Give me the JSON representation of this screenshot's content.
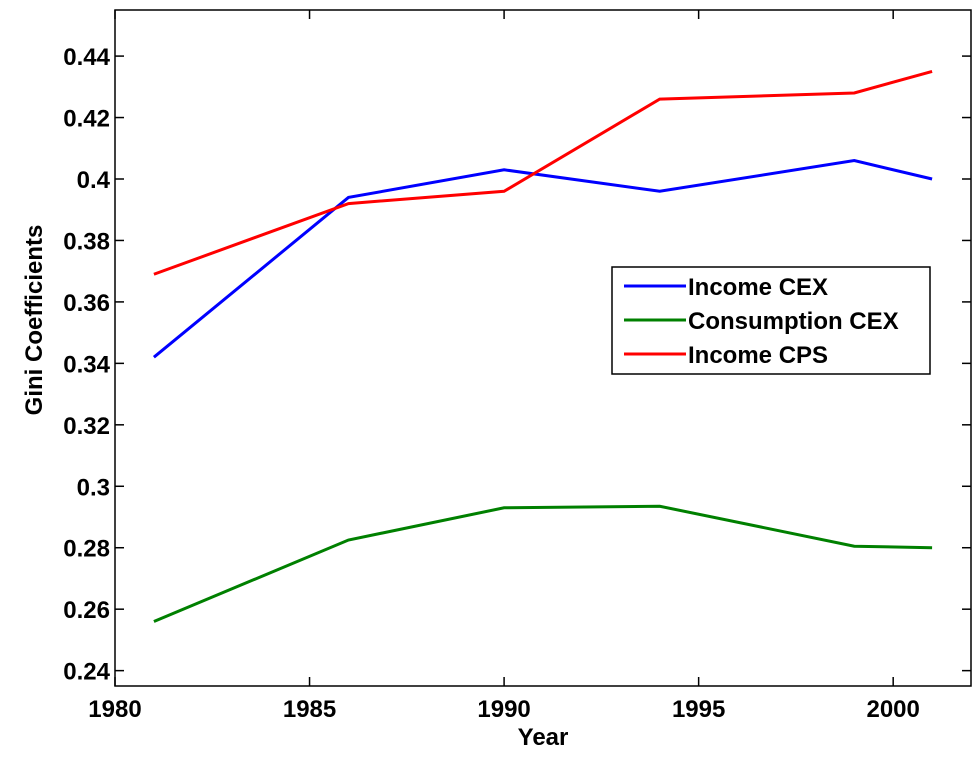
{
  "chart_data": {
    "type": "line",
    "x_label": "Year",
    "y_label": "Gini Coefficients",
    "x": [
      1981,
      1986,
      1990,
      1994,
      1999,
      2001
    ],
    "series": [
      {
        "name": "Income CEX",
        "color": "#0000ff",
        "values": [
          0.342,
          0.394,
          0.403,
          0.396,
          0.406,
          0.4
        ]
      },
      {
        "name": "Consumption CEX",
        "color": "#008000",
        "values": [
          0.256,
          0.2825,
          0.293,
          0.2935,
          0.2805,
          0.28
        ]
      },
      {
        "name": "Income CPS",
        "color": "#ff0000",
        "values": [
          0.369,
          0.392,
          0.396,
          0.426,
          0.428,
          0.435
        ]
      }
    ],
    "xlim": [
      1980,
      2002
    ],
    "xticks": [
      1980,
      1985,
      1990,
      1995,
      2000
    ],
    "ylim": [
      0.235,
      0.455
    ],
    "yticks": [
      0.24,
      0.26,
      0.28,
      0.3,
      0.32,
      0.34,
      0.36,
      0.38,
      0.4,
      0.42,
      0.44
    ],
    "legend": "right"
  }
}
